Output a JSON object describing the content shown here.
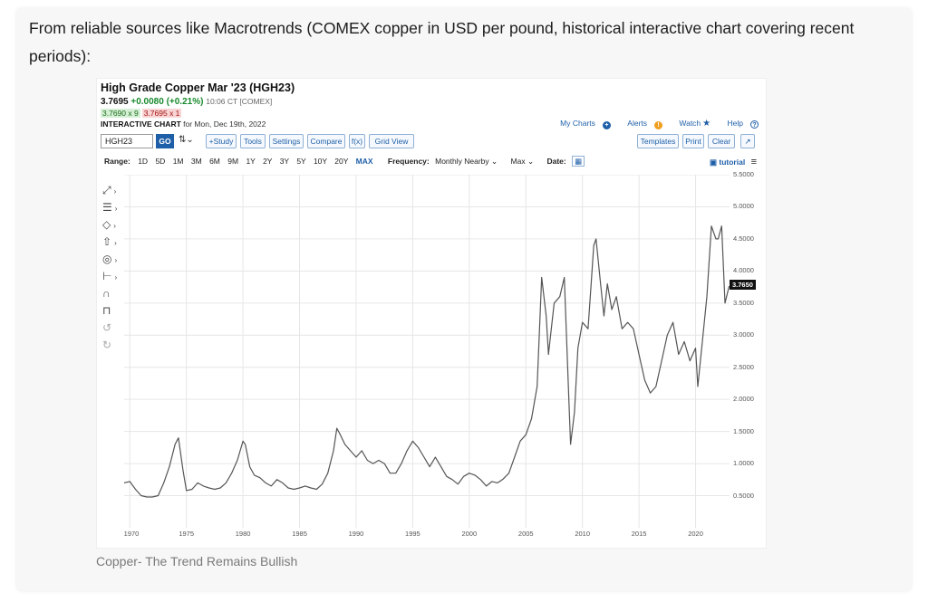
{
  "article": {
    "intro": "From reliable sources like Macrotrends (COMEX copper in USD per pound, historical interactive chart covering recent periods):",
    "caption": "Copper- The Trend Remains Bullish"
  },
  "chart_header": {
    "title": "High Grade Copper Mar '23 (HGH23)",
    "last": "3.7695",
    "change": "+0.0080 (+0.21%)",
    "time": "10:06 CT [COMEX]",
    "bid": "3.7690 x 9",
    "ask": "3.7695 x 1",
    "interactive_label": "INTERACTIVE CHART",
    "interactive_date": "for Mon, Dec 19th, 2022"
  },
  "toplinks": {
    "my_charts": "My Charts",
    "alerts": "Alerts",
    "watch": "Watch",
    "help": "Help"
  },
  "toolbar": {
    "symbol_value": "HGH23",
    "go": "GO",
    "study": "+Study",
    "tools": "Tools",
    "settings": "Settings",
    "compare": "Compare",
    "fx": "f(x)",
    "grid_view": "Grid View",
    "templates": "Templates",
    "print": "Print",
    "clear": "Clear"
  },
  "rangebar": {
    "range_label": "Range:",
    "ranges": [
      "1D",
      "5D",
      "1M",
      "3M",
      "6M",
      "9M",
      "1Y",
      "2Y",
      "3Y",
      "5Y",
      "10Y",
      "20Y",
      "MAX"
    ],
    "frequency_label": "Frequency:",
    "frequency_value": "Monthly Nearby",
    "max_value": "Max",
    "date_label": "Date:",
    "tutorial": "tutorial"
  },
  "colors": {
    "link": "#1f5fa8",
    "up": "#1a8a2e",
    "line": "#555555"
  },
  "chart_data": {
    "type": "line",
    "title": "",
    "xlabel": "",
    "ylabel": "",
    "ylim": [
      0,
      5.5
    ],
    "xlim": [
      1969.5,
      2023
    ],
    "y_ticks": [
      "5.5000",
      "5.0000",
      "4.5000",
      "4.0000",
      "3.5000",
      "3.0000",
      "2.5000",
      "2.0000",
      "1.5000",
      "1.0000",
      "0.5000"
    ],
    "x_ticks": [
      "1970",
      "1975",
      "1980",
      "1985",
      "1990",
      "1995",
      "2000",
      "2005",
      "2010",
      "2015",
      "2020"
    ],
    "last_value_label": "3.7650",
    "series": [
      {
        "x": [
          1969.5,
          1970.0,
          1970.5,
          1971.0,
          1971.5,
          1972.0,
          1972.5,
          1973.0,
          1973.5,
          1974.0,
          1974.3,
          1974.7,
          1975.0,
          1975.5,
          1976.0,
          1976.5,
          1977.0,
          1977.5,
          1978.0,
          1978.5,
          1979.0,
          1979.5,
          1980.0,
          1980.2,
          1980.6,
          1981.0,
          1981.5,
          1982.0,
          1982.5,
          1983.0,
          1983.5,
          1984.0,
          1984.5,
          1985.0,
          1985.5,
          1986.0,
          1986.5,
          1987.0,
          1987.5,
          1988.0,
          1988.3,
          1988.6,
          1989.0,
          1989.5,
          1990.0,
          1990.5,
          1991.0,
          1991.5,
          1992.0,
          1992.5,
          1993.0,
          1993.5,
          1994.0,
          1994.5,
          1995.0,
          1995.5,
          1996.0,
          1996.5,
          1997.0,
          1997.5,
          1998.0,
          1998.5,
          1999.0,
          1999.5,
          2000.0,
          2000.5,
          2001.0,
          2001.5,
          2002.0,
          2002.5,
          2003.0,
          2003.5,
          2004.0,
          2004.5,
          2005.0,
          2005.5,
          2006.0,
          2006.4,
          2006.8,
          2007.0,
          2007.5,
          2008.0,
          2008.4,
          2008.8,
          2008.95,
          2009.3,
          2009.6,
          2010.0,
          2010.5,
          2011.0,
          2011.2,
          2011.6,
          2011.9,
          2012.2,
          2012.6,
          2013.0,
          2013.5,
          2014.0,
          2014.5,
          2015.0,
          2015.5,
          2016.0,
          2016.5,
          2017.0,
          2017.5,
          2018.0,
          2018.5,
          2019.0,
          2019.5,
          2020.0,
          2020.2,
          2020.6,
          2021.0,
          2021.4,
          2021.8,
          2022.0,
          2022.3,
          2022.6,
          2022.97
        ],
        "values": [
          0.7,
          0.72,
          0.6,
          0.5,
          0.48,
          0.48,
          0.5,
          0.7,
          0.95,
          1.3,
          1.4,
          0.9,
          0.58,
          0.6,
          0.7,
          0.65,
          0.62,
          0.6,
          0.62,
          0.7,
          0.85,
          1.05,
          1.35,
          1.3,
          0.95,
          0.82,
          0.78,
          0.7,
          0.65,
          0.75,
          0.7,
          0.62,
          0.6,
          0.62,
          0.65,
          0.62,
          0.6,
          0.68,
          0.85,
          1.2,
          1.55,
          1.45,
          1.3,
          1.2,
          1.1,
          1.2,
          1.05,
          1.0,
          1.05,
          1.0,
          0.85,
          0.85,
          1.0,
          1.2,
          1.35,
          1.25,
          1.1,
          0.95,
          1.1,
          0.95,
          0.8,
          0.75,
          0.68,
          0.8,
          0.85,
          0.82,
          0.75,
          0.65,
          0.72,
          0.7,
          0.76,
          0.85,
          1.1,
          1.35,
          1.45,
          1.7,
          2.2,
          3.9,
          3.3,
          2.7,
          3.5,
          3.6,
          3.9,
          2.0,
          1.3,
          1.8,
          2.8,
          3.2,
          3.1,
          4.4,
          4.5,
          3.8,
          3.3,
          3.8,
          3.4,
          3.6,
          3.1,
          3.2,
          3.1,
          2.7,
          2.3,
          2.1,
          2.2,
          2.6,
          3.0,
          3.2,
          2.7,
          2.9,
          2.6,
          2.8,
          2.2,
          2.9,
          3.6,
          4.7,
          4.5,
          4.5,
          4.7,
          3.5,
          3.765
        ]
      }
    ]
  }
}
